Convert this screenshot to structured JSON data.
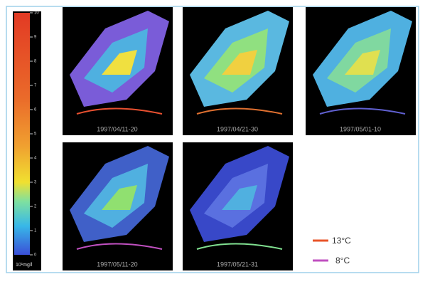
{
  "colorbar": {
    "ticks": [
      0,
      1,
      2,
      3,
      4,
      5,
      6,
      7,
      8,
      9,
      10
    ],
    "unit": "10¹mg/l"
  },
  "panels": [
    {
      "label": "1997/04/11-20"
    },
    {
      "label": "1997/04/21-30"
    },
    {
      "label": "1997/05/01-10"
    },
    {
      "label": "1997/05/11-20"
    },
    {
      "label": "1997/05/21-31"
    }
  ],
  "legend": [
    {
      "label": "13°C",
      "color": "#e8542a"
    },
    {
      "label": "8°C",
      "color": "#c050c0"
    }
  ]
}
